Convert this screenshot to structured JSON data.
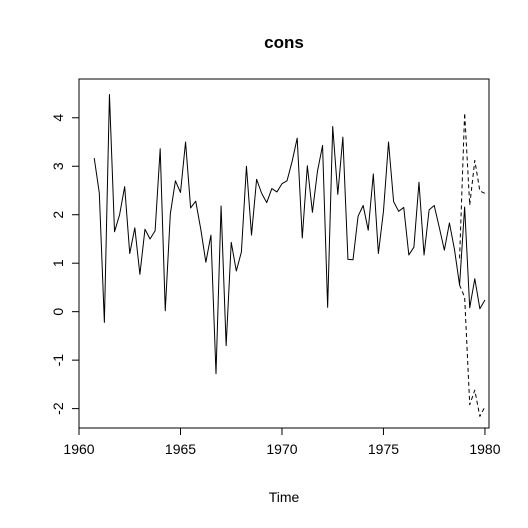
{
  "chart_data": {
    "type": "line",
    "title": "cons",
    "xlabel": "Time",
    "ylabel": "",
    "xlim": [
      1960,
      1980.2
    ],
    "ylim": [
      -2.4,
      4.8
    ],
    "x_ticks": [
      1960,
      1965,
      1970,
      1975,
      1980
    ],
    "y_ticks": [
      -2,
      -1,
      0,
      1,
      2,
      3,
      4
    ],
    "grid": false,
    "series": [
      {
        "line_style": "solid",
        "points": [
          [
            1960.75,
            3.17
          ],
          [
            1961.0,
            2.45
          ],
          [
            1961.25,
            -0.22
          ],
          [
            1961.5,
            4.48
          ],
          [
            1961.75,
            1.65
          ],
          [
            1962.0,
            2.0
          ],
          [
            1962.25,
            2.58
          ],
          [
            1962.5,
            1.2
          ],
          [
            1962.75,
            1.73
          ],
          [
            1963.0,
            0.77
          ],
          [
            1963.25,
            1.7
          ],
          [
            1963.5,
            1.5
          ],
          [
            1963.75,
            1.67
          ],
          [
            1964.0,
            3.36
          ],
          [
            1964.25,
            0.02
          ],
          [
            1964.5,
            2.02
          ],
          [
            1964.75,
            2.7
          ],
          [
            1965.0,
            2.46
          ],
          [
            1965.25,
            3.5
          ],
          [
            1965.5,
            2.14
          ],
          [
            1965.75,
            2.28
          ],
          [
            1966.0,
            1.7
          ],
          [
            1966.25,
            1.02
          ],
          [
            1966.5,
            1.58
          ],
          [
            1966.75,
            -1.28
          ],
          [
            1967.0,
            2.18
          ],
          [
            1967.25,
            -0.7
          ],
          [
            1967.5,
            1.43
          ],
          [
            1967.75,
            0.84
          ],
          [
            1968.0,
            1.23
          ],
          [
            1968.25,
            3.0
          ],
          [
            1968.5,
            1.58
          ],
          [
            1968.75,
            2.73
          ],
          [
            1969.0,
            2.44
          ],
          [
            1969.25,
            2.25
          ],
          [
            1969.5,
            2.54
          ],
          [
            1969.75,
            2.47
          ],
          [
            1970.0,
            2.64
          ],
          [
            1970.25,
            2.7
          ],
          [
            1970.5,
            3.1
          ],
          [
            1970.75,
            3.58
          ],
          [
            1971.0,
            1.52
          ],
          [
            1971.25,
            3.01
          ],
          [
            1971.5,
            2.05
          ],
          [
            1971.75,
            2.9
          ],
          [
            1972.0,
            3.43
          ],
          [
            1972.25,
            0.09
          ],
          [
            1972.5,
            3.82
          ],
          [
            1972.75,
            2.42
          ],
          [
            1973.0,
            3.6
          ],
          [
            1973.25,
            1.08
          ],
          [
            1973.5,
            1.07
          ],
          [
            1973.75,
            1.97
          ],
          [
            1974.0,
            2.19
          ],
          [
            1974.25,
            1.68
          ],
          [
            1974.5,
            2.84
          ],
          [
            1974.75,
            1.2
          ],
          [
            1975.0,
            2.07
          ],
          [
            1975.25,
            3.5
          ],
          [
            1975.5,
            2.27
          ],
          [
            1975.75,
            2.07
          ],
          [
            1976.0,
            2.15
          ],
          [
            1976.25,
            1.17
          ],
          [
            1976.5,
            1.33
          ],
          [
            1976.75,
            2.67
          ],
          [
            1977.0,
            1.17
          ],
          [
            1977.25,
            2.1
          ],
          [
            1977.5,
            2.19
          ],
          [
            1977.75,
            1.74
          ],
          [
            1978.0,
            1.27
          ],
          [
            1978.25,
            1.83
          ],
          [
            1978.5,
            1.28
          ],
          [
            1978.75,
            0.55
          ],
          [
            1979.0,
            2.16
          ],
          [
            1979.25,
            0.08
          ],
          [
            1979.5,
            0.68
          ],
          [
            1979.75,
            0.06
          ],
          [
            1980.0,
            0.24
          ]
        ]
      },
      {
        "line_style": "dashed",
        "points": [
          [
            1978.75,
            1.1
          ],
          [
            1979.0,
            4.1
          ],
          [
            1979.25,
            2.2
          ],
          [
            1979.5,
            3.12
          ],
          [
            1979.75,
            2.49
          ],
          [
            1980.0,
            2.44
          ]
        ]
      },
      {
        "line_style": "dashed",
        "points": [
          [
            1978.75,
            0.55
          ],
          [
            1979.0,
            0.3
          ],
          [
            1979.25,
            -1.92
          ],
          [
            1979.5,
            -1.62
          ],
          [
            1979.75,
            -2.16
          ],
          [
            1980.0,
            -1.96
          ]
        ]
      }
    ]
  }
}
